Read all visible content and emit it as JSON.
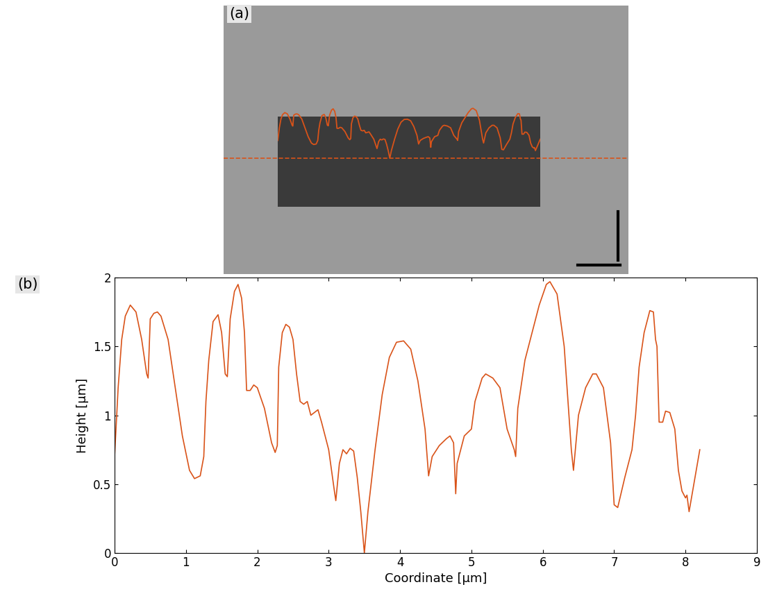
{
  "chart_data": {
    "type": "line",
    "annotations": [
      "(a)",
      "(b)"
    ],
    "x_label": "Coordinate [µm]",
    "y_label": "Height [µm]",
    "xlim": [
      0,
      9
    ],
    "xticks": [
      0,
      1,
      2,
      3,
      4,
      5,
      6,
      7,
      8,
      9
    ],
    "ylim": [
      0,
      2
    ],
    "yticks": [
      0,
      0.5,
      1,
      1.5,
      2
    ],
    "grid": false,
    "color": "#d95319",
    "x": [
      0,
      0.05,
      0.1,
      0.15,
      0.22,
      0.3,
      0.38,
      0.45,
      0.47,
      0.5,
      0.55,
      0.6,
      0.65,
      0.75,
      0.85,
      0.95,
      1.05,
      1.12,
      1.2,
      1.25,
      1.28,
      1.32,
      1.38,
      1.45,
      1.5,
      1.55,
      1.58,
      1.62,
      1.68,
      1.73,
      1.78,
      1.82,
      1.85,
      1.9,
      1.95,
      2.0,
      2.1,
      2.2,
      2.25,
      2.28,
      2.3,
      2.35,
      2.4,
      2.45,
      2.5,
      2.55,
      2.6,
      2.65,
      2.7,
      2.75,
      2.8,
      2.85,
      2.9,
      3.0,
      3.08,
      3.1,
      3.15,
      3.2,
      3.25,
      3.3,
      3.35,
      3.4,
      3.45,
      3.5,
      3.55,
      3.65,
      3.75,
      3.85,
      3.95,
      4.05,
      4.15,
      4.25,
      4.35,
      4.4,
      4.45,
      4.55,
      4.65,
      4.7,
      4.75,
      4.78,
      4.8,
      4.9,
      5.0,
      5.05,
      5.15,
      5.2,
      5.3,
      5.4,
      5.5,
      5.6,
      5.62,
      5.65,
      5.75,
      5.85,
      5.95,
      6.05,
      6.1,
      6.2,
      6.3,
      6.4,
      6.43,
      6.5,
      6.6,
      6.7,
      6.75,
      6.85,
      6.95,
      7.0,
      7.05,
      7.15,
      7.25,
      7.3,
      7.35,
      7.42,
      7.5,
      7.55,
      7.58,
      7.6,
      7.63,
      7.68,
      7.72,
      7.78,
      7.85,
      7.9,
      7.95,
      8.0,
      8.02,
      8.05,
      8.1,
      8.2
    ],
    "values": [
      0.7,
      1.2,
      1.55,
      1.72,
      1.8,
      1.75,
      1.55,
      1.3,
      1.27,
      1.7,
      1.74,
      1.75,
      1.72,
      1.55,
      1.2,
      0.85,
      0.6,
      0.54,
      0.56,
      0.7,
      1.1,
      1.4,
      1.68,
      1.73,
      1.6,
      1.3,
      1.28,
      1.7,
      1.9,
      1.95,
      1.85,
      1.6,
      1.18,
      1.18,
      1.22,
      1.2,
      1.05,
      0.8,
      0.73,
      0.78,
      1.35,
      1.6,
      1.66,
      1.64,
      1.55,
      1.3,
      1.1,
      1.08,
      1.1,
      1.0,
      1.02,
      1.04,
      0.95,
      0.75,
      0.45,
      0.38,
      0.65,
      0.75,
      0.72,
      0.76,
      0.74,
      0.55,
      0.3,
      0.0,
      0.3,
      0.75,
      1.15,
      1.42,
      1.53,
      1.54,
      1.48,
      1.25,
      0.9,
      0.56,
      0.7,
      0.78,
      0.83,
      0.85,
      0.8,
      0.43,
      0.65,
      0.85,
      0.9,
      1.1,
      1.27,
      1.3,
      1.27,
      1.2,
      0.9,
      0.75,
      0.7,
      1.05,
      1.4,
      1.6,
      1.8,
      1.95,
      1.97,
      1.88,
      1.5,
      0.75,
      0.6,
      1.0,
      1.2,
      1.3,
      1.3,
      1.2,
      0.8,
      0.35,
      0.33,
      0.55,
      0.75,
      1.0,
      1.35,
      1.6,
      1.76,
      1.75,
      1.55,
      1.5,
      0.95,
      0.95,
      1.03,
      1.02,
      0.9,
      0.6,
      0.45,
      0.4,
      0.42,
      0.3,
      0.45,
      0.75
    ]
  }
}
